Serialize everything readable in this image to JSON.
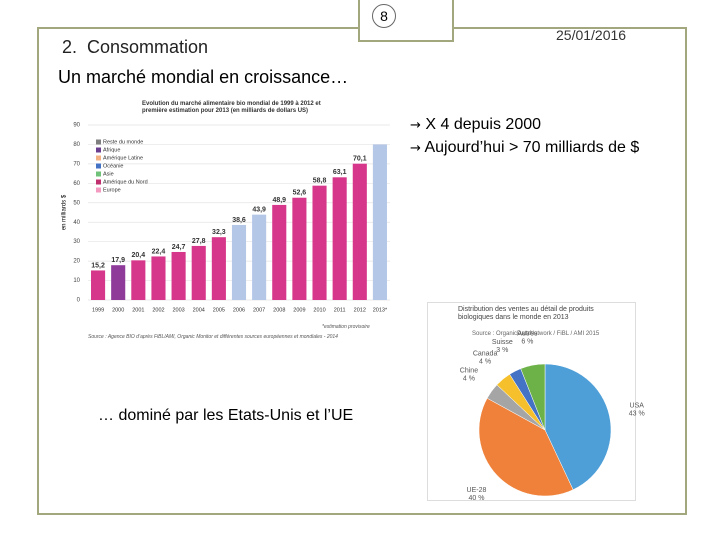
{
  "slide": {
    "number": "8",
    "date": "25/01/2016",
    "section": "2.  Consommation",
    "title": "Un marché mondial en croissance…",
    "bullets": [
      "X 4 depuis 2000",
      "Aujourd’hui > 70 milliards de $"
    ],
    "caption": "… dominé par les Etats-Unis et l’UE"
  },
  "chart_data": [
    {
      "type": "bar",
      "title": "Evolution du marché alimentaire bio mondial de 1999 à 2012 et première estimation pour 2013 (en milliards de dollars US)",
      "y_label": "en milliards $",
      "note": "*estimation provisoire",
      "source": "Source : Agence BIO d’après FiBL/AMI, Organic Monitor et différentes sources européennes et mondiales - 2014",
      "categories": [
        "1999",
        "2000",
        "2001",
        "2002",
        "2003",
        "2004",
        "2005",
        "2006",
        "2007",
        "2008",
        "2009",
        "2010",
        "2011",
        "2012",
        "2013*"
      ],
      "values": [
        15.2,
        17.9,
        20.4,
        22.4,
        24.7,
        27.8,
        32.3,
        38.6,
        43.9,
        48.9,
        52.6,
        58.8,
        63.1,
        70.1,
        80
      ],
      "value_labels": [
        "15,2",
        "17,9",
        "20,4",
        "22,4",
        "24,7",
        "27,8",
        "32,3",
        "38,6",
        "43,9",
        "48,9",
        "52,6",
        "58,8",
        "63,1",
        "70,1",
        null
      ],
      "colors": [
        "#d6378a",
        "#8e3b9a",
        "#d6378a",
        "#d6378a",
        "#d6378a",
        "#d6378a",
        "#d6378a",
        "#b4c7e7",
        "#b4c7e7",
        "#d6378a",
        "#d6378a",
        "#d6378a",
        "#d6378a",
        "#d6378a",
        "#b4c7e7"
      ],
      "legend": [
        {
          "name": "Reste du monde",
          "color": "#7f7f7f"
        },
        {
          "name": "Afrique",
          "color": "#6b3d8f"
        },
        {
          "name": "Amérique Latine",
          "color": "#f4b183"
        },
        {
          "name": "Océanie",
          "color": "#4472c4"
        },
        {
          "name": "Asie",
          "color": "#70c27a"
        },
        {
          "name": "Amérique du Nord",
          "color": "#c0306e"
        },
        {
          "name": "Europe",
          "color": "#f49ac1"
        }
      ],
      "ylim": [
        0,
        90
      ],
      "yticks": [
        0,
        10,
        20,
        30,
        40,
        50,
        60,
        70,
        80,
        90
      ],
      "grid": true
    },
    {
      "type": "pie",
      "title": "Distribution des ventes au détail de produits biologiques dans le monde en 2013",
      "source": "Source : OrganicDataNetwork / FiBL / AMI 2015",
      "categories": [
        "USA",
        "UE-28",
        "Chine",
        "Canada",
        "Suisse",
        "Autres"
      ],
      "values": [
        43,
        40,
        4,
        4,
        3,
        6
      ],
      "value_labels": [
        "43 %",
        "40 %",
        "4 %",
        "4 %",
        "3 %",
        "6 %"
      ],
      "colors": [
        "#4e9fd8",
        "#f0813a",
        "#a5a5a5",
        "#f5c02b",
        "#4472c4",
        "#6db249"
      ]
    }
  ]
}
